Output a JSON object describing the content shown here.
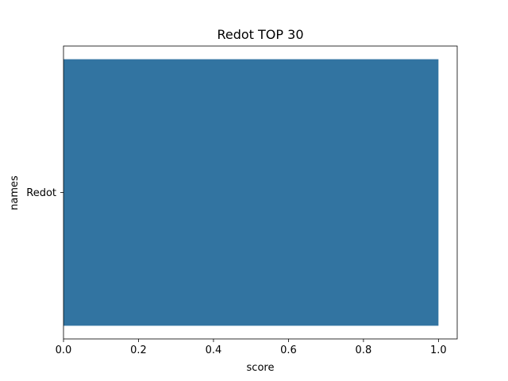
{
  "chart_data": {
    "type": "bar",
    "orientation": "horizontal",
    "title": "Redot TOP 30",
    "xlabel": "score",
    "ylabel": "names",
    "categories": [
      "Redot"
    ],
    "values": [
      1.0
    ],
    "xlim": [
      0.0,
      1.05
    ],
    "xticks": [
      "0.0",
      "0.2",
      "0.4",
      "0.6",
      "0.8",
      "1.0"
    ],
    "grid": false,
    "bar_color": "#3274a1"
  }
}
